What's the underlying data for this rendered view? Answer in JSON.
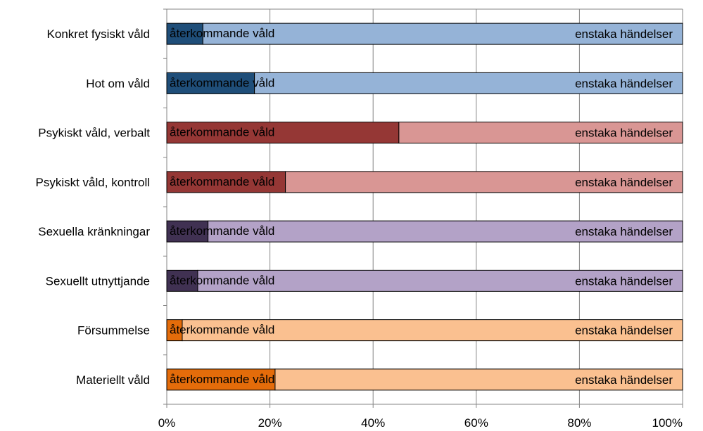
{
  "chart_data": {
    "type": "bar",
    "orientation": "horizontal",
    "stacked": true,
    "percent_stacked": true,
    "categories": [
      "Konkret fysiskt våld",
      "Hot om våld",
      "Psykiskt våld, verbalt",
      "Psykiskt våld, kontroll",
      "Sexuella kränkningar",
      "Sexuellt utnyttjande",
      "Försummelse",
      "Materiellt våld"
    ],
    "series": [
      {
        "name": "återkommande våld",
        "values": [
          7,
          17,
          45,
          23,
          8,
          6,
          3,
          21
        ],
        "colors": [
          "#1f4e79",
          "#1f4e79",
          "#953735",
          "#953735",
          "#403152",
          "#403152",
          "#e46c0a",
          "#e46c0a"
        ]
      },
      {
        "name": "enstaka händelser",
        "values": [
          93,
          83,
          55,
          77,
          92,
          94,
          97,
          79
        ],
        "colors": [
          "#95b3d7",
          "#95b3d7",
          "#d99694",
          "#d99694",
          "#b3a2c7",
          "#b3a2c7",
          "#fac090",
          "#fac090"
        ]
      }
    ],
    "xlim": [
      0,
      100
    ],
    "x_ticks": [
      "0%",
      "20%",
      "40%",
      "60%",
      "80%",
      "100%"
    ],
    "grid": true,
    "legend": "none",
    "title": "",
    "xlabel": "",
    "ylabel": ""
  }
}
